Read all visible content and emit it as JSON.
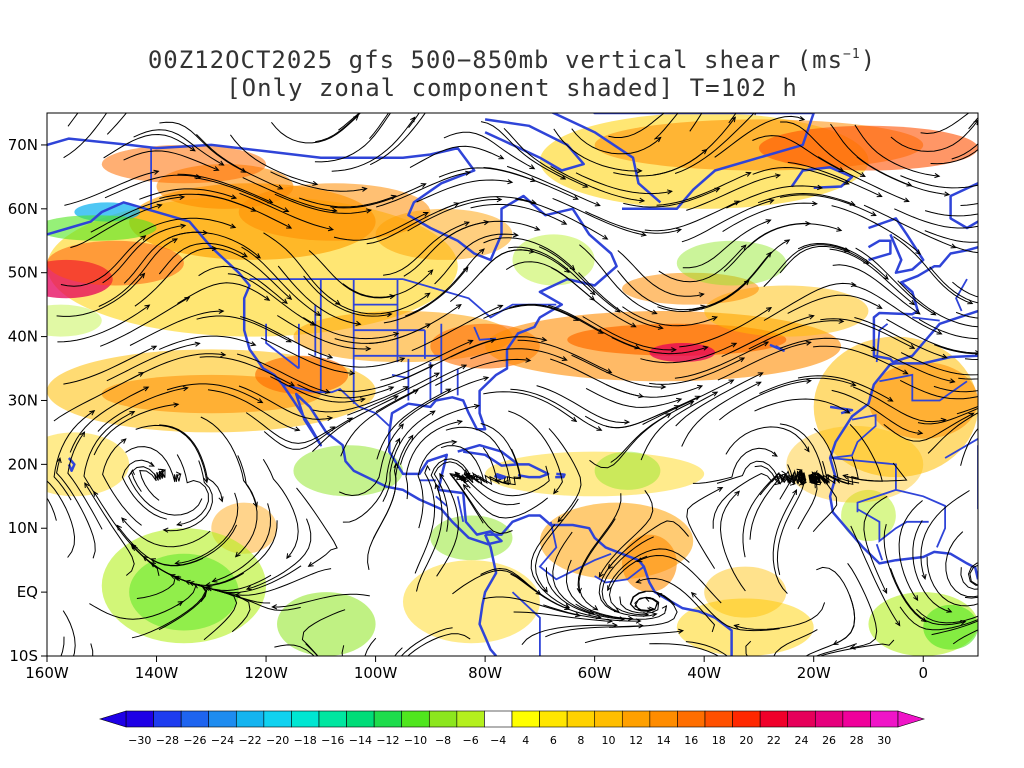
{
  "title": {
    "line1_prefix": "00Z12OCT2025 gfs 500−850mb vertical shear (ms",
    "line1_sup": "−1",
    "line1_suffix": ")",
    "line2": "[Only zonal component shaded] T=102 h"
  },
  "map": {
    "lon_range": [
      -160,
      10
    ],
    "lat_range": [
      -10,
      75
    ],
    "x_ticks": [
      {
        "lon": -160,
        "label": "160W"
      },
      {
        "lon": -140,
        "label": "140W"
      },
      {
        "lon": -120,
        "label": "120W"
      },
      {
        "lon": -100,
        "label": "100W"
      },
      {
        "lon": -80,
        "label": "80W"
      },
      {
        "lon": -60,
        "label": "60W"
      },
      {
        "lon": -40,
        "label": "40W"
      },
      {
        "lon": -20,
        "label": "20W"
      },
      {
        "lon": 0,
        "label": "0"
      }
    ],
    "y_ticks": [
      {
        "lat": -10,
        "label": "10S"
      },
      {
        "lat": 0,
        "label": "EQ"
      },
      {
        "lat": 10,
        "label": "10N"
      },
      {
        "lat": 20,
        "label": "20N"
      },
      {
        "lat": 30,
        "label": "30N"
      },
      {
        "lat": 40,
        "label": "40N"
      },
      {
        "lat": 50,
        "label": "50N"
      },
      {
        "lat": 60,
        "label": "60N"
      },
      {
        "lat": 70,
        "label": "70N"
      }
    ],
    "coastline_color": "#2f44d8",
    "streamline_color": "#000000"
  },
  "colorbar": {
    "labels": [
      "−30",
      "−28",
      "−26",
      "−24",
      "−22",
      "−20",
      "−18",
      "−16",
      "−14",
      "−12",
      "−10",
      "−8",
      "−6",
      "−4",
      "4",
      "6",
      "8",
      "10",
      "12",
      "14",
      "16",
      "18",
      "20",
      "22",
      "24",
      "26",
      "28",
      "30"
    ],
    "colors": [
      "#1e00e6",
      "#1e3cf0",
      "#1e64f0",
      "#1e8cf0",
      "#14b4f0",
      "#10d2f0",
      "#00e6d2",
      "#00e6a0",
      "#00dc78",
      "#1edc4c",
      "#50e61e",
      "#8ce61e",
      "#b4f01e",
      "#ffffff",
      "#ffff00",
      "#ffe600",
      "#ffd200",
      "#ffbe00",
      "#ffa000",
      "#ff8c00",
      "#ff6e00",
      "#ff5000",
      "#ff2800",
      "#f0002a",
      "#e6005a",
      "#e6007d",
      "#f0009b",
      "#f014c8"
    ]
  }
}
